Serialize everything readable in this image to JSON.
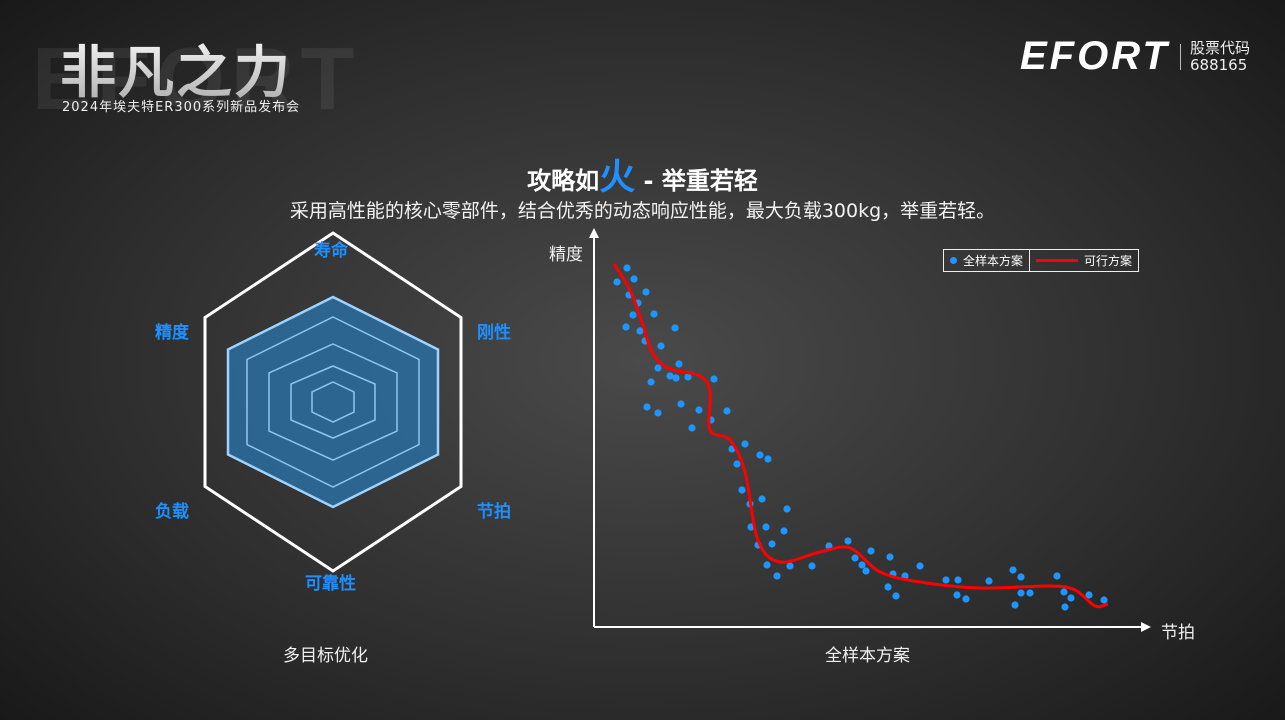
{
  "brand": {
    "watermark": "EFORT",
    "title": "非凡之力",
    "subtitle": "2024年埃夫特ER300系列新品发布会"
  },
  "logo": {
    "name": "EFORT",
    "stock_label": "股票代码",
    "stock_code": "688165"
  },
  "headline": {
    "prefix": "攻略如",
    "highlight": "火",
    "suffix": " - 举重若轻"
  },
  "subline": "采用高性能的核心零部件，结合优秀的动态响应性能，最大负载300kg，举重若轻。",
  "radar": {
    "labels": [
      "寿命",
      "刚性",
      "节拍",
      "可靠性",
      "负载",
      "精度"
    ],
    "caption": "多目标优化",
    "fill_color": "#2a6fa0",
    "label_color": "#1e8fff"
  },
  "scatter": {
    "y_label": "精度",
    "x_label": "节拍",
    "caption": "全样本方案",
    "legend": [
      {
        "label": "全样本方案",
        "color": "#1e96ff"
      },
      {
        "label": "可行方案",
        "color": "#ff0000"
      }
    ]
  }
}
